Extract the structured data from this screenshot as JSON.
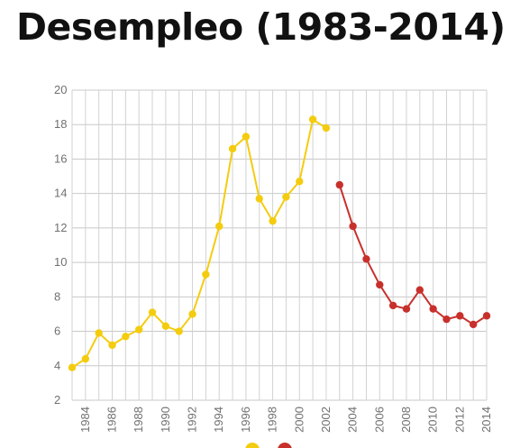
{
  "title": "Desempleo (1983-2014)",
  "chart_data": {
    "type": "line",
    "title": "Desempleo (1983-2014)",
    "xlabel": "",
    "ylabel": "",
    "ylim": [
      2,
      20
    ],
    "xlim": [
      1983,
      2014
    ],
    "y_ticks": [
      2,
      4,
      6,
      8,
      10,
      12,
      14,
      16,
      18,
      20
    ],
    "x_ticks": [
      1984,
      1986,
      1988,
      1990,
      1992,
      1994,
      1996,
      1998,
      2000,
      2002,
      2004,
      2006,
      2008,
      2010,
      2012,
      2014
    ],
    "grid": true,
    "legend": "bottom-center",
    "series": [
      {
        "color": "#f4cc0f",
        "x": [
          1983,
          1984,
          1985,
          1986,
          1987,
          1988,
          1989,
          1990,
          1991,
          1992,
          1993,
          1994,
          1995,
          1996,
          1997,
          1998,
          1999,
          2000,
          2001,
          2002
        ],
        "values": [
          3.9,
          4.4,
          5.9,
          5.2,
          5.7,
          6.1,
          7.1,
          6.3,
          6.0,
          7.0,
          9.3,
          12.1,
          16.6,
          17.3,
          13.7,
          12.4,
          13.8,
          14.7,
          18.3,
          17.8
        ]
      },
      {
        "color": "#c8302c",
        "x": [
          2003,
          2004,
          2005,
          2006,
          2007,
          2008,
          2009,
          2010,
          2011,
          2012,
          2013,
          2014
        ],
        "values": [
          14.5,
          12.1,
          10.2,
          8.7,
          7.5,
          7.3,
          8.4,
          7.3,
          6.7,
          6.9,
          6.4,
          6.9
        ]
      }
    ]
  }
}
